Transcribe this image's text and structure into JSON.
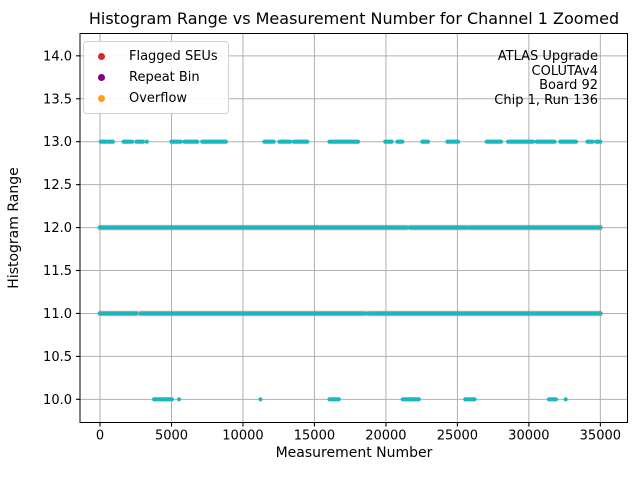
{
  "title": "Histogram Range vs Measurement Number for Channel 1 Zoomed",
  "legend": {
    "items": [
      {
        "label": "Flagged SEUs",
        "color": "#d62728"
      },
      {
        "label": "Repeat Bin",
        "color": "#800080"
      },
      {
        "label": "Overflow",
        "color": "#ffa013"
      }
    ]
  },
  "annotation": {
    "lines": [
      "ATLAS Upgrade",
      "COLUTAv4",
      "Board 92",
      "Chip 1, Run 136"
    ]
  },
  "chart_data": {
    "type": "scatter",
    "title": "Histogram Range vs Measurement Number for Channel 1 Zoomed",
    "xlabel": "Measurement Number",
    "ylabel": "Histogram Range",
    "xlim": [
      -1400,
      36900
    ],
    "ylim": [
      9.73,
      14.26
    ],
    "xticks": [
      0,
      5000,
      10000,
      15000,
      20000,
      25000,
      30000,
      35000
    ],
    "xtick_labels": [
      "0",
      "5000",
      "10000",
      "15000",
      "20000",
      "25000",
      "30000",
      "35000"
    ],
    "yticks": [
      10.0,
      10.5,
      11.0,
      11.5,
      12.0,
      12.5,
      13.0,
      13.5,
      14.0
    ],
    "ytick_labels": [
      "10.0",
      "10.5",
      "11.0",
      "11.5",
      "12.0",
      "12.5",
      "13.0",
      "13.5",
      "14.0"
    ],
    "grid": true,
    "grid_color": "#b0b0b0",
    "legend_position": "upper left",
    "annotation_position": "upper right",
    "point_color": "#1ab8bc",
    "flagged_seu_color": "#d62728",
    "series": [
      {
        "name": "range-13",
        "y": 13.0,
        "seu_underlay": false,
        "segments": [
          [
            50,
            400
          ],
          [
            550,
            900
          ],
          [
            1650,
            2250
          ],
          [
            2550,
            3000
          ],
          [
            3150,
            3400
          ],
          [
            5000,
            5650
          ],
          [
            5900,
            6800
          ],
          [
            7150,
            8800
          ],
          [
            11500,
            12150
          ],
          [
            12550,
            13300
          ],
          [
            13550,
            14500
          ],
          [
            16050,
            18050
          ],
          [
            19950,
            20400
          ],
          [
            20800,
            21150
          ],
          [
            22550,
            22950
          ],
          [
            24300,
            25050
          ],
          [
            27050,
            28050
          ],
          [
            28550,
            30300
          ],
          [
            30550,
            31800
          ],
          [
            32200,
            33300
          ],
          [
            34100,
            34450
          ],
          [
            34700,
            35000
          ]
        ]
      },
      {
        "name": "range-12",
        "y": 12.0,
        "seu_underlay": true,
        "segments": [
          [
            0,
            21450
          ],
          [
            21700,
            25600
          ],
          [
            25800,
            35000
          ]
        ]
      },
      {
        "name": "range-11",
        "y": 11.0,
        "seu_underlay": true,
        "segments": [
          [
            0,
            2550
          ],
          [
            2850,
            18400
          ],
          [
            18550,
            18700
          ],
          [
            18850,
            35000
          ]
        ]
      },
      {
        "name": "range-10",
        "y": 10.0,
        "seu_underlay": false,
        "segments": [
          [
            3780,
            4150
          ],
          [
            4280,
            5030
          ],
          [
            5400,
            5650
          ],
          [
            11150,
            11300
          ],
          [
            16050,
            16700
          ],
          [
            21180,
            22300
          ],
          [
            25550,
            26200
          ],
          [
            31400,
            31900
          ],
          [
            32500,
            32650
          ]
        ]
      }
    ]
  }
}
